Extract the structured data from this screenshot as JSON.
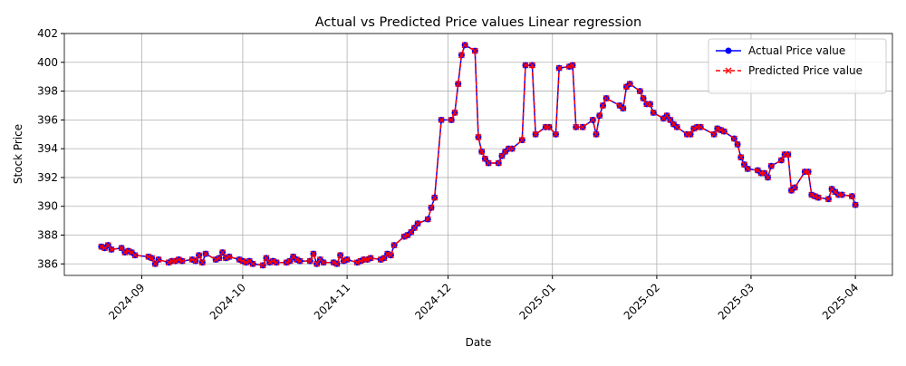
{
  "chart_data": {
    "type": "line",
    "title": "Actual vs Predicted Price values Linear regression",
    "xlabel": "Date",
    "ylabel": "Stock Price",
    "x": [
      "2024-08-20",
      "2024-08-21",
      "2024-08-22",
      "2024-08-23",
      "2024-08-26",
      "2024-08-27",
      "2024-08-28",
      "2024-08-29",
      "2024-08-30",
      "2024-09-03",
      "2024-09-04",
      "2024-09-05",
      "2024-09-06",
      "2024-09-09",
      "2024-09-10",
      "2024-09-11",
      "2024-09-12",
      "2024-09-13",
      "2024-09-16",
      "2024-09-17",
      "2024-09-18",
      "2024-09-19",
      "2024-09-20",
      "2024-09-23",
      "2024-09-24",
      "2024-09-25",
      "2024-09-26",
      "2024-09-27",
      "2024-09-30",
      "2024-10-01",
      "2024-10-02",
      "2024-10-03",
      "2024-10-04",
      "2024-10-07",
      "2024-10-08",
      "2024-10-09",
      "2024-10-10",
      "2024-10-11",
      "2024-10-14",
      "2024-10-15",
      "2024-10-16",
      "2024-10-17",
      "2024-10-18",
      "2024-10-21",
      "2024-10-22",
      "2024-10-23",
      "2024-10-24",
      "2024-10-25",
      "2024-10-28",
      "2024-10-29",
      "2024-10-30",
      "2024-10-31",
      "2024-11-01",
      "2024-11-04",
      "2024-11-05",
      "2024-11-06",
      "2024-11-07",
      "2024-11-08",
      "2024-11-11",
      "2024-11-12",
      "2024-11-13",
      "2024-11-14",
      "2024-11-15",
      "2024-11-18",
      "2024-11-19",
      "2024-11-20",
      "2024-11-21",
      "2024-11-22",
      "2024-11-25",
      "2024-11-26",
      "2024-11-27",
      "2024-11-29",
      "2024-12-02",
      "2024-12-03",
      "2024-12-04",
      "2024-12-05",
      "2024-12-06",
      "2024-12-09",
      "2024-12-10",
      "2024-12-11",
      "2024-12-12",
      "2024-12-13",
      "2024-12-16",
      "2024-12-17",
      "2024-12-18",
      "2024-12-19",
      "2024-12-20",
      "2024-12-23",
      "2024-12-24",
      "2024-12-26",
      "2024-12-27",
      "2024-12-30",
      "2024-12-31",
      "2025-01-02",
      "2025-01-03",
      "2025-01-06",
      "2025-01-07",
      "2025-01-08",
      "2025-01-10",
      "2025-01-13",
      "2025-01-14",
      "2025-01-15",
      "2025-01-16",
      "2025-01-17",
      "2025-01-21",
      "2025-01-22",
      "2025-01-23",
      "2025-01-24",
      "2025-01-27",
      "2025-01-28",
      "2025-01-29",
      "2025-01-30",
      "2025-01-31",
      "2025-02-03",
      "2025-02-04",
      "2025-02-05",
      "2025-02-06",
      "2025-02-07",
      "2025-02-10",
      "2025-02-11",
      "2025-02-12",
      "2025-02-13",
      "2025-02-14",
      "2025-02-18",
      "2025-02-19",
      "2025-02-20",
      "2025-02-21",
      "2025-02-24",
      "2025-02-25",
      "2025-02-26",
      "2025-02-27",
      "2025-02-28",
      "2025-03-03",
      "2025-03-04",
      "2025-03-05",
      "2025-03-06",
      "2025-03-07",
      "2025-03-10",
      "2025-03-11",
      "2025-03-12",
      "2025-03-13",
      "2025-03-14",
      "2025-03-17",
      "2025-03-18",
      "2025-03-19",
      "2025-03-20",
      "2025-03-21",
      "2025-03-24",
      "2025-03-25",
      "2025-03-26",
      "2025-03-27",
      "2025-03-28",
      "2025-03-31",
      "2025-04-01"
    ],
    "series": [
      {
        "name": "Actual Price value",
        "color": "#0000ff",
        "marker": "o",
        "linestyle": "solid",
        "values": [
          387.2,
          387.1,
          387.3,
          387.0,
          387.1,
          386.8,
          386.9,
          386.8,
          386.6,
          386.5,
          386.4,
          386.0,
          386.3,
          386.1,
          386.2,
          386.2,
          386.3,
          386.2,
          386.3,
          386.2,
          386.6,
          386.1,
          386.7,
          386.3,
          386.4,
          386.8,
          386.4,
          386.5,
          386.3,
          386.2,
          386.1,
          386.2,
          386.0,
          385.9,
          386.4,
          386.1,
          386.2,
          386.1,
          386.1,
          386.2,
          386.5,
          386.3,
          386.2,
          386.2,
          386.7,
          386.0,
          386.3,
          386.1,
          386.1,
          386.0,
          386.6,
          386.2,
          386.3,
          386.1,
          386.2,
          386.3,
          386.3,
          386.4,
          386.3,
          386.4,
          386.7,
          386.6,
          387.3,
          387.9,
          388.0,
          388.2,
          388.5,
          388.8,
          389.1,
          389.9,
          390.6,
          396.0,
          396.0,
          396.5,
          398.5,
          400.5,
          401.2,
          400.8,
          394.8,
          393.8,
          393.3,
          393.0,
          393.0,
          393.5,
          393.8,
          394.0,
          394.0,
          394.6,
          399.8,
          399.8,
          395.0,
          395.5,
          395.5,
          395.0,
          399.6,
          399.7,
          399.8,
          395.5,
          395.5,
          396.0,
          395.0,
          396.3,
          397.0,
          397.5,
          397.0,
          396.8,
          398.3,
          398.5,
          398.0,
          397.5,
          397.1,
          397.1,
          396.5,
          396.1,
          396.3,
          396.0,
          395.7,
          395.5,
          395.0,
          395.0,
          395.4,
          395.5,
          395.5,
          395.0,
          395.4,
          395.3,
          395.2,
          394.7,
          394.3,
          393.4,
          392.9,
          392.6,
          392.5,
          392.3,
          392.3,
          392.0,
          392.8,
          393.2,
          393.6,
          393.6,
          391.1,
          391.3,
          392.4,
          392.4,
          390.8,
          390.7,
          390.6,
          390.5,
          391.2,
          391.0,
          390.8,
          390.8,
          390.7,
          390.1
        ]
      },
      {
        "name": "Predicted Price value",
        "color": "#ff0000",
        "marker": "x",
        "linestyle": "dashed",
        "values": [
          387.2,
          387.1,
          387.3,
          387.0,
          387.1,
          386.8,
          386.9,
          386.8,
          386.6,
          386.5,
          386.4,
          386.0,
          386.3,
          386.1,
          386.2,
          386.2,
          386.3,
          386.2,
          386.3,
          386.2,
          386.6,
          386.1,
          386.7,
          386.3,
          386.4,
          386.8,
          386.4,
          386.5,
          386.3,
          386.2,
          386.1,
          386.2,
          386.0,
          385.9,
          386.4,
          386.1,
          386.2,
          386.1,
          386.1,
          386.2,
          386.5,
          386.3,
          386.2,
          386.2,
          386.7,
          386.0,
          386.3,
          386.1,
          386.1,
          386.0,
          386.6,
          386.2,
          386.3,
          386.1,
          386.2,
          386.3,
          386.3,
          386.4,
          386.3,
          386.4,
          386.7,
          386.6,
          387.3,
          387.9,
          388.0,
          388.2,
          388.5,
          388.8,
          389.1,
          389.9,
          390.6,
          396.0,
          396.0,
          396.5,
          398.5,
          400.5,
          401.2,
          400.8,
          394.8,
          393.8,
          393.3,
          393.0,
          393.0,
          393.5,
          393.8,
          394.0,
          394.0,
          394.6,
          399.8,
          399.8,
          395.0,
          395.5,
          395.5,
          395.0,
          399.6,
          399.7,
          399.8,
          395.5,
          395.5,
          396.0,
          395.0,
          396.3,
          397.0,
          397.5,
          397.0,
          396.8,
          398.3,
          398.5,
          398.0,
          397.5,
          397.1,
          397.1,
          396.5,
          396.1,
          396.3,
          396.0,
          395.7,
          395.5,
          395.0,
          395.0,
          395.4,
          395.5,
          395.5,
          395.0,
          395.4,
          395.3,
          395.2,
          394.7,
          394.3,
          393.4,
          392.9,
          392.6,
          392.5,
          392.3,
          392.3,
          392.0,
          392.8,
          393.2,
          393.6,
          393.6,
          391.1,
          391.3,
          392.4,
          392.4,
          390.8,
          390.7,
          390.6,
          390.5,
          391.2,
          391.0,
          390.8,
          390.8,
          390.7,
          390.1
        ]
      }
    ],
    "xlim": [
      "2024-08-09",
      "2025-04-12"
    ],
    "xticks": [
      {
        "value": "2024-09-01",
        "label": "2024-09"
      },
      {
        "value": "2024-10-01",
        "label": "2024-10"
      },
      {
        "value": "2024-11-01",
        "label": "2024-11"
      },
      {
        "value": "2024-12-01",
        "label": "2024-12"
      },
      {
        "value": "2025-01-01",
        "label": "2025-01"
      },
      {
        "value": "2025-02-01",
        "label": "2025-02"
      },
      {
        "value": "2025-03-01",
        "label": "2025-03"
      },
      {
        "value": "2025-04-01",
        "label": "2025-04"
      }
    ],
    "ylim": [
      385.2,
      402.0
    ],
    "yticks": [
      386,
      388,
      390,
      392,
      394,
      396,
      398,
      400,
      402
    ],
    "grid": true,
    "legend": "upper right"
  }
}
